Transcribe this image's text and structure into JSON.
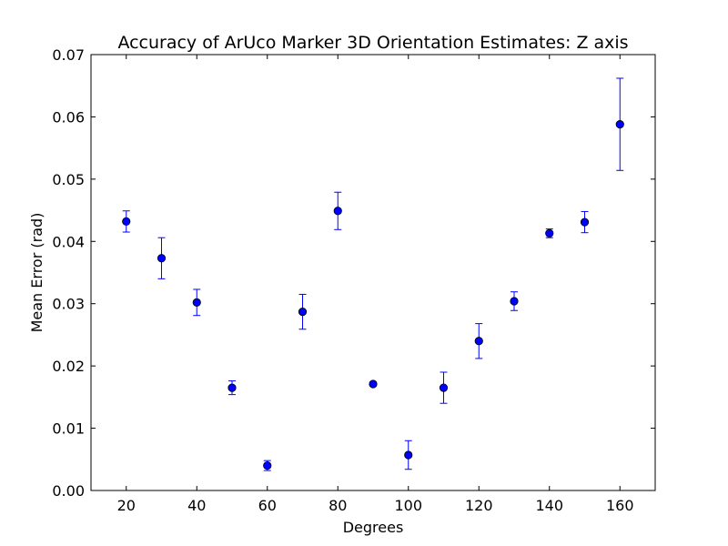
{
  "chart_data": {
    "type": "scatter",
    "title": "Accuracy of ArUco Marker 3D Orientation Estimates: Z axis",
    "xlabel": "Degrees",
    "ylabel": "Mean Error (rad)",
    "xlim": [
      10,
      170
    ],
    "ylim": [
      0.0,
      0.07
    ],
    "xticks": [
      20,
      40,
      60,
      80,
      100,
      120,
      140,
      160
    ],
    "xtick_labels": [
      "20",
      "40",
      "60",
      "80",
      "100",
      "120",
      "140",
      "160"
    ],
    "yticks": [
      0.0,
      0.01,
      0.02,
      0.03,
      0.04,
      0.05,
      0.06,
      0.07
    ],
    "ytick_labels": [
      "0.00",
      "0.01",
      "0.02",
      "0.03",
      "0.04",
      "0.05",
      "0.06",
      "0.07"
    ],
    "grid": false,
    "error_bars": true,
    "marker_color": "#0000ff",
    "series": [
      {
        "x": [
          20,
          30,
          40,
          50,
          60,
          70,
          80,
          90,
          100,
          110,
          120,
          130,
          140,
          150,
          160
        ],
        "y": [
          0.0432,
          0.0373,
          0.0302,
          0.0165,
          0.004,
          0.0287,
          0.0449,
          0.0171,
          0.0057,
          0.0165,
          0.024,
          0.0304,
          0.0413,
          0.0431,
          0.0588
        ],
        "yerr": [
          0.0017,
          0.0033,
          0.0021,
          0.0011,
          0.0008,
          0.0028,
          0.003,
          0.0003,
          0.0023,
          0.0025,
          0.0028,
          0.0015,
          0.0007,
          0.0017,
          0.0074
        ]
      }
    ]
  }
}
